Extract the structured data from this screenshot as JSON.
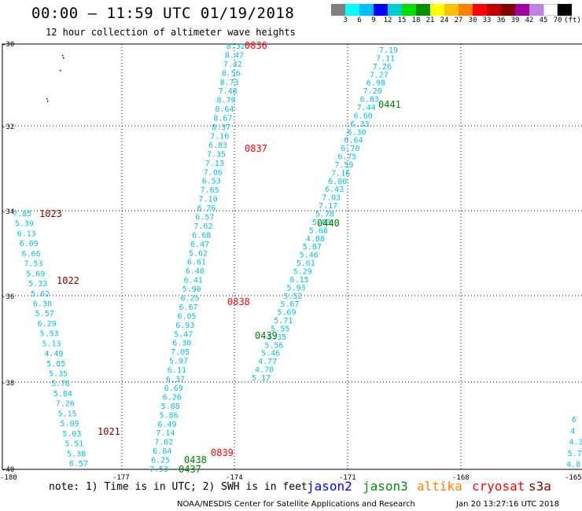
{
  "title": "00:00 – 11:59 UTC 01/19/2018",
  "subtitle": "12 hour collection of altimeter wave heights",
  "legend": {
    "unit": "(ft)",
    "colors": [
      "#808080",
      "#00ffff",
      "#00bfff",
      "#0000ff",
      "#00ced1",
      "#00e000",
      "#009000",
      "#ffff00",
      "#ffc000",
      "#ff8000",
      "#ff0000",
      "#c00000",
      "#800000",
      "#a000a0",
      "#c080e0",
      "#ffffff",
      "#000000"
    ],
    "labels": [
      "3",
      "6",
      "9",
      "12",
      "15",
      "18",
      "21",
      "24",
      "27",
      "30",
      "33",
      "36",
      "39",
      "42",
      "45",
      "70"
    ]
  },
  "axes": {
    "lat_labels": [
      "-30",
      "-32",
      "-34",
      "-36",
      "-38",
      "-40"
    ],
    "lon_labels": [
      "-180",
      "-177",
      "-174",
      "-171",
      "-168",
      "-165"
    ]
  },
  "tracks": [
    {
      "name": "track-0836",
      "color": "#00c0e0",
      "values": [
        "8.32",
        "8.47",
        "7.42",
        "8.56",
        "8.73",
        "7.48",
        "8.79",
        "8.64",
        "8.67",
        "8.37",
        "7.16",
        "6.83",
        "7.35",
        "7.13",
        "7.06",
        "6.53",
        "7.65",
        "7.10",
        "6.76",
        "6.57",
        "7.62",
        "6.68",
        "6.47",
        "5.62",
        "6.61",
        "6.40",
        "6.41",
        "5.90",
        "6.25",
        "6.67",
        "6.05",
        "6.93",
        "5.47",
        "6.30",
        "7.05",
        "5.97",
        "6.11",
        "6.37",
        "6.69",
        "6.26",
        "5.88",
        "5.86",
        "6.49",
        "7.14",
        "7.02",
        "6.84",
        "6.25",
        "7.53"
      ]
    },
    {
      "name": "track-0441",
      "color": "#00c0e0",
      "values": [
        "7.19",
        "7.11",
        "7.26",
        "7.27",
        "6.98",
        "7.20",
        "6.83",
        "7.44",
        "6.60",
        "6.33",
        "6.30",
        "6.64",
        "6.70",
        "6.75",
        "7.59",
        "7.16",
        "6.80",
        "6.43",
        "7.03",
        "7.17",
        "5.78",
        "5.83",
        "5.68",
        "4.88",
        "5.87",
        "5.46",
        "5.61",
        "5.29",
        "6.15",
        "5.93",
        "5.52",
        "5.67",
        "5.69",
        "5.71",
        "5.55",
        "5.35",
        "5.56",
        "5.46",
        "4.77",
        "4.70",
        "5.17"
      ]
    },
    {
      "name": "track-1023",
      "color": "#00c0e0",
      "values": [
        "7.85",
        "5.39",
        "6.13",
        "6.09",
        "6.66",
        "7.53",
        "5.69",
        "5.33",
        "5.62",
        "6.30",
        "5.57",
        "6.29",
        "5.53",
        "5.13",
        "4.49",
        "5.85",
        "5.35",
        "5.78",
        "5.84",
        "7.26",
        "5.15",
        "5.09",
        "5.03",
        "5.51",
        "5.38",
        "6.57"
      ]
    },
    {
      "name": "track-right-edge",
      "color": "#00c0e0",
      "values": [
        "6",
        "4",
        "4.3",
        "5.7",
        "4.8"
      ]
    }
  ],
  "labels": [
    {
      "text": "0836",
      "color": "#ff0000"
    },
    {
      "text": "0837",
      "color": "#ff0000"
    },
    {
      "text": "0838",
      "color": "#ff0000"
    },
    {
      "text": "0839",
      "color": "#ff0000"
    },
    {
      "text": "0441",
      "color": "#008000"
    },
    {
      "text": "0440",
      "color": "#008000"
    },
    {
      "text": "0439",
      "color": "#008000"
    },
    {
      "text": "0438",
      "color": "#008000"
    },
    {
      "text": "0437",
      "color": "#008000"
    },
    {
      "text": "1023",
      "color": "#800000"
    },
    {
      "text": "1022",
      "color": "#800000"
    },
    {
      "text": "1021",
      "color": "#800000"
    }
  ],
  "note": "note: 1) Time is in UTC; 2) SWH is in feet",
  "satellites": [
    {
      "name": "jason2",
      "color": "#0000ff"
    },
    {
      "name": "jason3",
      "color": "#009000"
    },
    {
      "name": "altika",
      "color": "#ff8000"
    },
    {
      "name": "cryosat",
      "color": "#ff0000"
    },
    {
      "name": "s3a",
      "color": "#800000"
    }
  ],
  "footer": "NOAA/NESDIS Center for Satellite Applications and Research",
  "footer_date": "Jan 20 13:27:16 UTC 2018"
}
